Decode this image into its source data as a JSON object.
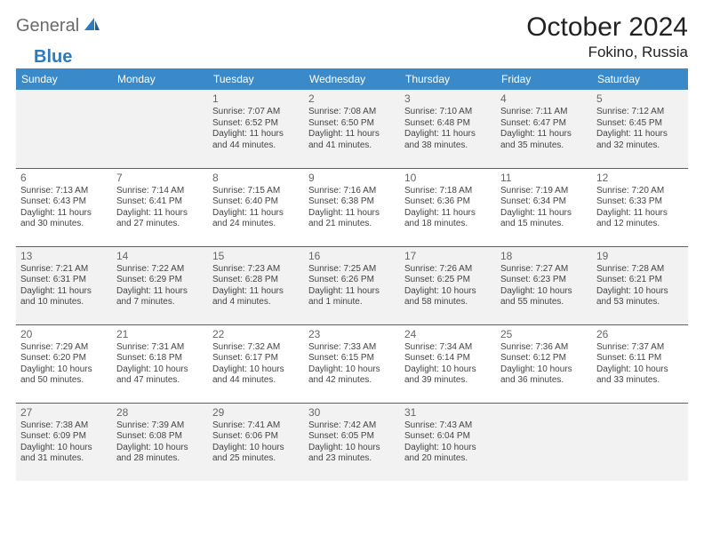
{
  "brand": {
    "part1": "General",
    "part2": "Blue"
  },
  "title": "October 2024",
  "location": "Fokino, Russia",
  "colors": {
    "header_bg": "#3a8ac9",
    "header_text": "#ffffff",
    "rule": "#2e6da4",
    "shade": "#f2f2f2",
    "logo_gray": "#6b6b6b",
    "logo_blue": "#2b7bbf"
  },
  "weekdays": [
    "Sunday",
    "Monday",
    "Tuesday",
    "Wednesday",
    "Thursday",
    "Friday",
    "Saturday"
  ],
  "layout": {
    "first_weekday_index": 2,
    "days_in_month": 31,
    "shaded_rows": [
      0,
      2,
      4
    ]
  },
  "days": {
    "1": {
      "sunrise": "7:07 AM",
      "sunset": "6:52 PM",
      "daylight": "11 hours and 44 minutes."
    },
    "2": {
      "sunrise": "7:08 AM",
      "sunset": "6:50 PM",
      "daylight": "11 hours and 41 minutes."
    },
    "3": {
      "sunrise": "7:10 AM",
      "sunset": "6:48 PM",
      "daylight": "11 hours and 38 minutes."
    },
    "4": {
      "sunrise": "7:11 AM",
      "sunset": "6:47 PM",
      "daylight": "11 hours and 35 minutes."
    },
    "5": {
      "sunrise": "7:12 AM",
      "sunset": "6:45 PM",
      "daylight": "11 hours and 32 minutes."
    },
    "6": {
      "sunrise": "7:13 AM",
      "sunset": "6:43 PM",
      "daylight": "11 hours and 30 minutes."
    },
    "7": {
      "sunrise": "7:14 AM",
      "sunset": "6:41 PM",
      "daylight": "11 hours and 27 minutes."
    },
    "8": {
      "sunrise": "7:15 AM",
      "sunset": "6:40 PM",
      "daylight": "11 hours and 24 minutes."
    },
    "9": {
      "sunrise": "7:16 AM",
      "sunset": "6:38 PM",
      "daylight": "11 hours and 21 minutes."
    },
    "10": {
      "sunrise": "7:18 AM",
      "sunset": "6:36 PM",
      "daylight": "11 hours and 18 minutes."
    },
    "11": {
      "sunrise": "7:19 AM",
      "sunset": "6:34 PM",
      "daylight": "11 hours and 15 minutes."
    },
    "12": {
      "sunrise": "7:20 AM",
      "sunset": "6:33 PM",
      "daylight": "11 hours and 12 minutes."
    },
    "13": {
      "sunrise": "7:21 AM",
      "sunset": "6:31 PM",
      "daylight": "11 hours and 10 minutes."
    },
    "14": {
      "sunrise": "7:22 AM",
      "sunset": "6:29 PM",
      "daylight": "11 hours and 7 minutes."
    },
    "15": {
      "sunrise": "7:23 AM",
      "sunset": "6:28 PM",
      "daylight": "11 hours and 4 minutes."
    },
    "16": {
      "sunrise": "7:25 AM",
      "sunset": "6:26 PM",
      "daylight": "11 hours and 1 minute."
    },
    "17": {
      "sunrise": "7:26 AM",
      "sunset": "6:25 PM",
      "daylight": "10 hours and 58 minutes."
    },
    "18": {
      "sunrise": "7:27 AM",
      "sunset": "6:23 PM",
      "daylight": "10 hours and 55 minutes."
    },
    "19": {
      "sunrise": "7:28 AM",
      "sunset": "6:21 PM",
      "daylight": "10 hours and 53 minutes."
    },
    "20": {
      "sunrise": "7:29 AM",
      "sunset": "6:20 PM",
      "daylight": "10 hours and 50 minutes."
    },
    "21": {
      "sunrise": "7:31 AM",
      "sunset": "6:18 PM",
      "daylight": "10 hours and 47 minutes."
    },
    "22": {
      "sunrise": "7:32 AM",
      "sunset": "6:17 PM",
      "daylight": "10 hours and 44 minutes."
    },
    "23": {
      "sunrise": "7:33 AM",
      "sunset": "6:15 PM",
      "daylight": "10 hours and 42 minutes."
    },
    "24": {
      "sunrise": "7:34 AM",
      "sunset": "6:14 PM",
      "daylight": "10 hours and 39 minutes."
    },
    "25": {
      "sunrise": "7:36 AM",
      "sunset": "6:12 PM",
      "daylight": "10 hours and 36 minutes."
    },
    "26": {
      "sunrise": "7:37 AM",
      "sunset": "6:11 PM",
      "daylight": "10 hours and 33 minutes."
    },
    "27": {
      "sunrise": "7:38 AM",
      "sunset": "6:09 PM",
      "daylight": "10 hours and 31 minutes."
    },
    "28": {
      "sunrise": "7:39 AM",
      "sunset": "6:08 PM",
      "daylight": "10 hours and 28 minutes."
    },
    "29": {
      "sunrise": "7:41 AM",
      "sunset": "6:06 PM",
      "daylight": "10 hours and 25 minutes."
    },
    "30": {
      "sunrise": "7:42 AM",
      "sunset": "6:05 PM",
      "daylight": "10 hours and 23 minutes."
    },
    "31": {
      "sunrise": "7:43 AM",
      "sunset": "6:04 PM",
      "daylight": "10 hours and 20 minutes."
    }
  },
  "labels": {
    "sunrise": "Sunrise: ",
    "sunset": "Sunset: ",
    "daylight": "Daylight: "
  }
}
